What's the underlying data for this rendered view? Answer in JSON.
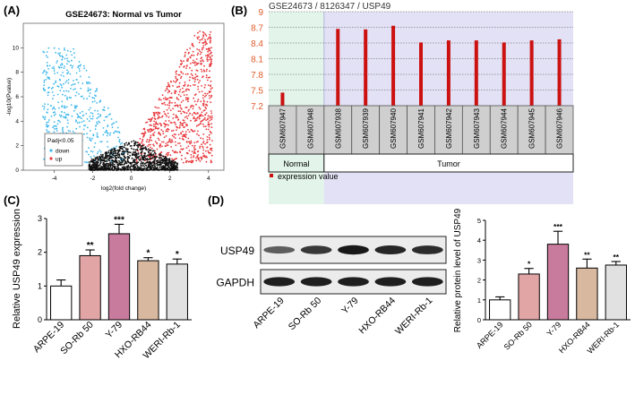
{
  "panels": {
    "a": {
      "letter": "(A)"
    },
    "b": {
      "letter": "(B)"
    },
    "c": {
      "letter": "(C)"
    },
    "d": {
      "letter": "(D)"
    }
  },
  "colors": {
    "down": "#3fb7ea",
    "up": "#e8383d",
    "ns": "#111111",
    "red_bar": "#cc1111",
    "normal_bg": "#e3f5ea",
    "tumor_bg": "#e3e1f5"
  },
  "chart_data": [
    {
      "id": "A",
      "type": "scatter",
      "title": "GSE24673: Normal vs Tumor",
      "xlabel": "log2(fold change)",
      "ylabel": "-log10(Pvalue)",
      "xlim": [
        -5.6,
        4.8
      ],
      "ylim": [
        0,
        12
      ],
      "xticks": [
        "-4",
        "-2",
        "0",
        "2",
        "4"
      ],
      "yticks": [
        "0",
        "2",
        "4",
        "6",
        "8",
        "10"
      ],
      "legend": {
        "title": "Padj<0.05",
        "entries": [
          "down",
          "up"
        ],
        "placement": "bottom-left"
      },
      "series": [
        {
          "name": "down",
          "x_range": [
            -4.6,
            -0.2
          ],
          "y_range": [
            0.5,
            9.4
          ],
          "n": 520
        },
        {
          "name": "up",
          "x_range": [
            0.2,
            4.2
          ],
          "y_range": [
            0.5,
            10.8
          ],
          "n": 850
        },
        {
          "name": "ns",
          "x_range": [
            -2.2,
            2.4
          ],
          "y_range": [
            0,
            2.5
          ],
          "n": 1100
        }
      ]
    },
    {
      "id": "B",
      "type": "bar",
      "title": "GSE24673 / 8126347 / USP49",
      "ylim": [
        7.2,
        9
      ],
      "yticks": [
        "7.2",
        "7.5",
        "7.8",
        "8.1",
        "8.4",
        "8.7",
        "9"
      ],
      "categories": [
        "GSM607947",
        "GSM607948",
        "GSM607938",
        "GSM607939",
        "GSM607940",
        "GSM607941",
        "GSM607942",
        "GSM607943",
        "GSM607944",
        "GSM607945",
        "GSM607946"
      ],
      "values": [
        7.45,
        7.2,
        8.67,
        8.66,
        8.73,
        8.41,
        8.45,
        8.45,
        8.41,
        8.45,
        8.47
      ],
      "groups": [
        {
          "label": "Normal",
          "count": 2
        },
        {
          "label": "Tumor",
          "count": 9
        }
      ],
      "legend": "expression value"
    },
    {
      "id": "C",
      "type": "bar",
      "ylabel": "Relative USP49 expression",
      "ylim": [
        0,
        3
      ],
      "yticks": [
        "0",
        "1",
        "2",
        "3"
      ],
      "categories": [
        "ARPE-19",
        "SO-Rb 50",
        "Y-79",
        "HXO-RB44",
        "WERI-Rb-1"
      ],
      "values": [
        1.0,
        1.9,
        2.55,
        1.75,
        1.65
      ],
      "errors": [
        0.18,
        0.17,
        0.28,
        0.09,
        0.15
      ],
      "significance": [
        "",
        "**",
        "***",
        "*",
        "*"
      ],
      "colors": [
        "#ffffff",
        "#e2a5a5",
        "#c87b9c",
        "#d8b89f",
        "#e1e1e1"
      ]
    },
    {
      "id": "D",
      "type": "bar",
      "ylabel": "Relative protein level of USP49",
      "ylim": [
        0,
        5
      ],
      "yticks": [
        "0",
        "1",
        "2",
        "3",
        "4",
        "5"
      ],
      "categories": [
        "ARPE-19",
        "SO-Rb 50",
        "Y-79",
        "HXO-RB44",
        "WERI-Rb-1"
      ],
      "values": [
        1.0,
        2.3,
        3.8,
        2.6,
        2.75
      ],
      "errors": [
        0.15,
        0.28,
        0.65,
        0.45,
        0.18
      ],
      "significance": [
        "",
        "*",
        "***",
        "**",
        "**"
      ],
      "colors": [
        "#ffffff",
        "#e2a5a5",
        "#c87b9c",
        "#d8b89f",
        "#e1e1e1"
      ]
    }
  ],
  "blot": {
    "rows": [
      "USP49",
      "GAPDH"
    ],
    "lanes": [
      "ARPE-19",
      "SO-Rb 50",
      "Y-79",
      "HXO-RB44",
      "WERI-Rb-1"
    ],
    "usp49_intensity": [
      0.45,
      0.75,
      1.0,
      0.9,
      0.85
    ],
    "gapdh_intensity": [
      0.95,
      0.95,
      0.95,
      0.95,
      0.95
    ]
  }
}
